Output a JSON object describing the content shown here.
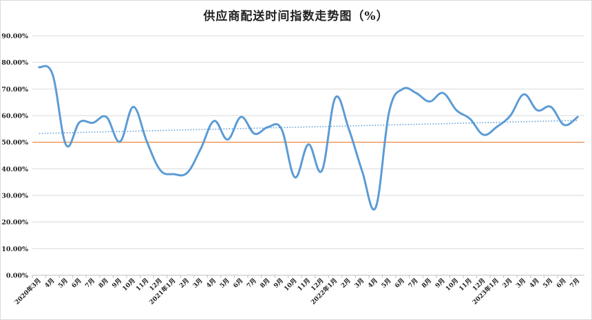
{
  "chart_data": {
    "type": "line",
    "title": "供应商配送时间指数走势图（%）",
    "xlabel": "",
    "ylabel": "",
    "ylim": [
      0,
      90
    ],
    "ytick_labels": [
      "0.00%",
      "10.00%",
      "20.00%",
      "30.00%",
      "40.00%",
      "50.00%",
      "60.00%",
      "70.00%",
      "80.00%",
      "90.00%"
    ],
    "ytick_values": [
      0,
      10,
      20,
      30,
      40,
      50,
      60,
      70,
      80,
      90
    ],
    "categories": [
      "2020年3月",
      "4月",
      "5月",
      "6月",
      "7月",
      "8月",
      "9月",
      "10月",
      "11月",
      "12月",
      "2021年1月",
      "2月",
      "3月",
      "4月",
      "5月",
      "6月",
      "7月",
      "8月",
      "9月",
      "10月",
      "11月",
      "12月",
      "2022年1月",
      "2月",
      "3月",
      "4月",
      "5月",
      "6月",
      "7月",
      "8月",
      "9月",
      "10月",
      "11月",
      "12月",
      "2023年1月",
      "2月",
      "3月",
      "4月",
      "5月",
      "6月",
      "7月"
    ],
    "series": [
      {
        "values": [
          78.2,
          75.5,
          49.0,
          57.5,
          57.3,
          59.5,
          50.2,
          63.3,
          50.3,
          39.5,
          38.0,
          38.5,
          47.5,
          58.0,
          51.0,
          59.5,
          53.2,
          55.7,
          55.0,
          36.8,
          49.2,
          39.3,
          66.7,
          55.0,
          39.0,
          25.5,
          61.5,
          70.0,
          68.5,
          65.3,
          68.5,
          62.0,
          58.8,
          52.8,
          55.8,
          60.0,
          68.0,
          62.0,
          63.3,
          56.5,
          59.5
        ],
        "color": "#5b9bd5",
        "style": "smooth"
      },
      {
        "values": [
          50,
          50,
          50,
          50,
          50,
          50,
          50,
          50,
          50,
          50,
          50,
          50,
          50,
          50,
          50,
          50,
          50,
          50,
          50,
          50,
          50,
          50,
          50,
          50,
          50,
          50,
          50,
          50,
          50,
          50,
          50,
          50,
          50,
          50,
          50,
          50,
          50,
          50,
          50,
          50,
          50
        ],
        "color": "#ed7d31",
        "style": "reference"
      }
    ],
    "trendline": {
      "type": "linear",
      "color": "#5b9bd5",
      "style": "dotted",
      "start": 53.3,
      "end": 58.2
    },
    "grid": true,
    "legend": "none"
  }
}
